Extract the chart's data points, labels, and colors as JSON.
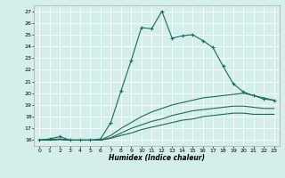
{
  "title": "",
  "xlabel": "Humidex (Indice chaleur)",
  "bg_color": "#d4eeeb",
  "grid_color": "#ffffff",
  "line_color": "#1a6b5a",
  "xlim": [
    -0.5,
    23.5
  ],
  "ylim": [
    15.5,
    27.5
  ],
  "xticks": [
    0,
    1,
    2,
    3,
    4,
    5,
    6,
    7,
    8,
    9,
    10,
    11,
    12,
    13,
    14,
    15,
    16,
    17,
    18,
    19,
    20,
    21,
    22,
    23
  ],
  "yticks": [
    16,
    17,
    18,
    19,
    20,
    21,
    22,
    23,
    24,
    25,
    26,
    27
  ],
  "series": [
    {
      "x": [
        0,
        1,
        2,
        3,
        4,
        5,
        6,
        7,
        8,
        9,
        10,
        11,
        12,
        13,
        14,
        15,
        16,
        17,
        18,
        19,
        20,
        21,
        22,
        23
      ],
      "y": [
        16.0,
        16.1,
        16.3,
        16.0,
        16.0,
        16.0,
        16.1,
        17.5,
        20.2,
        22.8,
        25.6,
        25.5,
        27.0,
        24.7,
        24.9,
        25.0,
        24.5,
        23.9,
        22.3,
        20.8,
        20.1,
        19.8,
        19.5,
        19.4
      ],
      "marker": "+",
      "linestyle": "-",
      "linewidth": 0.8,
      "markersize": 3.0
    },
    {
      "x": [
        0,
        1,
        2,
        3,
        4,
        5,
        6,
        7,
        8,
        9,
        10,
        11,
        12,
        13,
        14,
        15,
        16,
        17,
        18,
        19,
        20,
        21,
        22,
        23
      ],
      "y": [
        16.0,
        16.05,
        16.1,
        16.0,
        16.0,
        16.0,
        16.0,
        16.4,
        17.0,
        17.5,
        18.0,
        18.4,
        18.7,
        19.0,
        19.2,
        19.4,
        19.6,
        19.7,
        19.8,
        19.9,
        20.0,
        19.8,
        19.6,
        19.4
      ],
      "marker": null,
      "linestyle": "-",
      "linewidth": 0.8
    },
    {
      "x": [
        0,
        1,
        2,
        3,
        4,
        5,
        6,
        7,
        8,
        9,
        10,
        11,
        12,
        13,
        14,
        15,
        16,
        17,
        18,
        19,
        20,
        21,
        22,
        23
      ],
      "y": [
        16.0,
        16.0,
        16.05,
        16.0,
        16.0,
        16.0,
        16.0,
        16.2,
        16.6,
        17.0,
        17.3,
        17.6,
        17.8,
        18.1,
        18.3,
        18.5,
        18.6,
        18.7,
        18.8,
        18.9,
        18.9,
        18.8,
        18.7,
        18.7
      ],
      "marker": null,
      "linestyle": "-",
      "linewidth": 0.8
    },
    {
      "x": [
        0,
        1,
        2,
        3,
        4,
        5,
        6,
        7,
        8,
        9,
        10,
        11,
        12,
        13,
        14,
        15,
        16,
        17,
        18,
        19,
        20,
        21,
        22,
        23
      ],
      "y": [
        16.0,
        16.0,
        16.05,
        16.0,
        16.0,
        16.0,
        16.0,
        16.15,
        16.4,
        16.6,
        16.9,
        17.1,
        17.3,
        17.5,
        17.7,
        17.8,
        18.0,
        18.1,
        18.2,
        18.3,
        18.3,
        18.2,
        18.2,
        18.2
      ],
      "marker": null,
      "linestyle": "-",
      "linewidth": 0.8
    }
  ]
}
